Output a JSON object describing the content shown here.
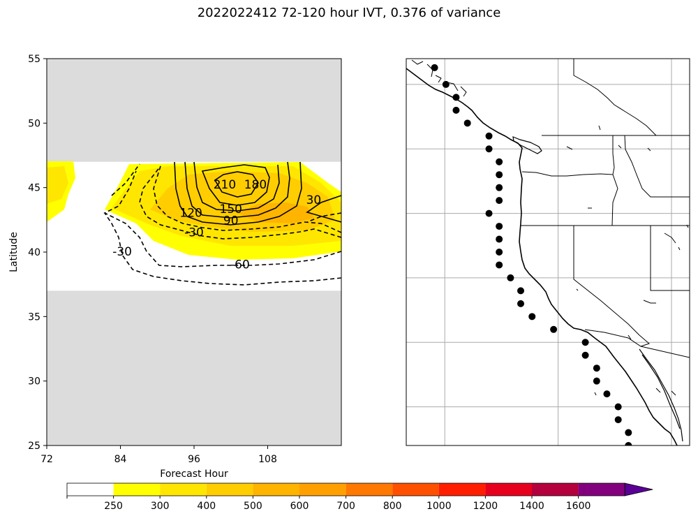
{
  "figure": {
    "title": "2022022412 72-120 hour IVT, 0.376 of variance"
  },
  "chart_data": [
    {
      "type": "contour",
      "xlabel": "Forecast Hour",
      "ylabel": "Latitude",
      "xlim": [
        72,
        120
      ],
      "ylim": [
        25,
        55
      ],
      "x_ticks": [
        72,
        84,
        96,
        108
      ],
      "y_ticks": [
        25,
        30,
        35,
        40,
        45,
        50,
        55
      ],
      "data_band_latitude": [
        37,
        47
      ],
      "no_data_color": "#dcdcdc",
      "filled_levels": [
        250,
        300,
        400,
        500
      ],
      "contour_labels": [
        {
          "text": "210",
          "x": 101,
          "y": 45.2
        },
        {
          "text": "180",
          "x": 106,
          "y": 45.2
        },
        {
          "text": "150",
          "x": 102,
          "y": 43.3
        },
        {
          "text": "120",
          "x": 95.5,
          "y": 43.0
        },
        {
          "text": "90",
          "x": 102,
          "y": 42.4
        },
        {
          "text": "30",
          "x": 115.5,
          "y": 44.0
        },
        {
          "text": "-30",
          "x": 96,
          "y": 41.5
        },
        {
          "text": "-30",
          "x": 84.3,
          "y": 40.0
        },
        {
          "text": "-60",
          "x": 103.5,
          "y": 39.0
        }
      ]
    },
    {
      "type": "map",
      "region": "US West Coast",
      "lon_range": [
        -136,
        -111
      ],
      "lat_range": [
        25,
        55
      ],
      "gridlines": true,
      "points": [
        [
          -133.5,
          54.3
        ],
        [
          -132.5,
          53.0
        ],
        [
          -131.6,
          52.0
        ],
        [
          -131.6,
          51.0
        ],
        [
          -130.6,
          50.0
        ],
        [
          -128.7,
          49.0
        ],
        [
          -128.7,
          48.0
        ],
        [
          -127.8,
          47.0
        ],
        [
          -127.8,
          46.0
        ],
        [
          -127.8,
          45.0
        ],
        [
          -127.8,
          44.0
        ],
        [
          -128.7,
          43.0
        ],
        [
          -127.8,
          42.0
        ],
        [
          -127.8,
          41.0
        ],
        [
          -127.8,
          40.0
        ],
        [
          -127.8,
          39.0
        ],
        [
          -126.8,
          38.0
        ],
        [
          -125.9,
          37.0
        ],
        [
          -125.9,
          36.0
        ],
        [
          -124.9,
          35.0
        ],
        [
          -123.0,
          34.0
        ],
        [
          -120.2,
          33.0
        ],
        [
          -120.2,
          32.0
        ],
        [
          -119.2,
          31.0
        ],
        [
          -119.2,
          30.0
        ],
        [
          -118.3,
          29.0
        ],
        [
          -117.3,
          28.0
        ],
        [
          -117.3,
          27.0
        ],
        [
          -116.4,
          26.0
        ],
        [
          -116.4,
          25.0
        ]
      ]
    }
  ],
  "colorbar": {
    "boundaries": [
      "250",
      "300",
      "400",
      "500",
      "600",
      "700",
      "800",
      "1000",
      "1200",
      "1400",
      "1600"
    ],
    "colors": [
      "#ffffff",
      "#ffff00",
      "#ffe600",
      "#ffcd00",
      "#ffb400",
      "#ffa000",
      "#ff7800",
      "#ff5000",
      "#ff1e00",
      "#e6001e",
      "#b4003c",
      "#82007d",
      "#5a0096"
    ],
    "extend": "max"
  }
}
